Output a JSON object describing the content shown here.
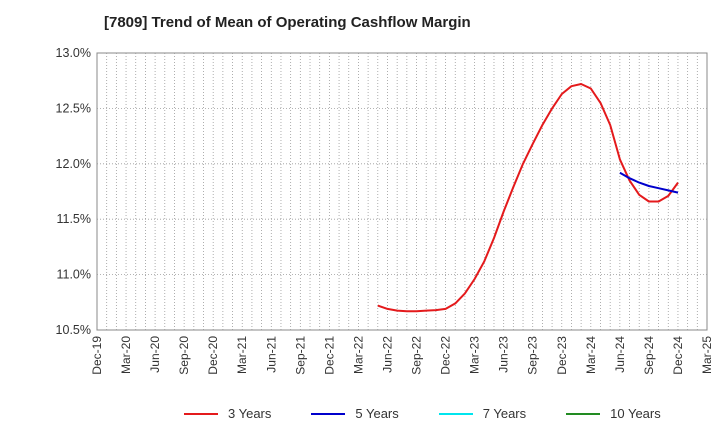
{
  "chart_data": {
    "type": "line",
    "title": "[7809]  Trend of Mean of Operating Cashflow Margin",
    "xlabel": "",
    "ylabel": "",
    "ylim": [
      10.5,
      13.0
    ],
    "y_ticks": [
      "13.0%",
      "12.5%",
      "12.0%",
      "11.5%",
      "11.0%",
      "10.5%"
    ],
    "y_tick_values": [
      13.0,
      12.5,
      12.0,
      11.5,
      11.0,
      10.5
    ],
    "x_ticks": [
      "Dec-19",
      "Mar-20",
      "Jun-20",
      "Sep-20",
      "Dec-20",
      "Mar-21",
      "Jun-21",
      "Sep-21",
      "Dec-21",
      "Mar-22",
      "Jun-22",
      "Sep-22",
      "Dec-22",
      "Mar-23",
      "Jun-23",
      "Sep-23",
      "Dec-23",
      "Mar-24",
      "Jun-24",
      "Sep-24",
      "Dec-24",
      "Mar-25"
    ],
    "grid": true,
    "legend_position": "bottom",
    "series": [
      {
        "name": "3 Years",
        "color": "#e41a1c",
        "x": [
          "May-22",
          "Jun-22",
          "Jul-22",
          "Aug-22",
          "Sep-22",
          "Oct-22",
          "Nov-22",
          "Dec-22",
          "Jan-23",
          "Feb-23",
          "Mar-23",
          "Apr-23",
          "May-23",
          "Jun-23",
          "Jul-23",
          "Aug-23",
          "Sep-23",
          "Oct-23",
          "Nov-23",
          "Dec-23",
          "Jan-24",
          "Feb-24",
          "Mar-24",
          "Apr-24",
          "May-24",
          "Jun-24",
          "Jul-24",
          "Aug-24",
          "Sep-24",
          "Oct-24",
          "Nov-24",
          "Dec-24"
        ],
        "values": [
          10.72,
          10.69,
          10.675,
          10.67,
          10.67,
          10.675,
          10.68,
          10.69,
          10.74,
          10.83,
          10.96,
          11.12,
          11.33,
          11.57,
          11.79,
          12.0,
          12.18,
          12.35,
          12.5,
          12.63,
          12.7,
          12.72,
          12.68,
          12.55,
          12.35,
          12.04,
          11.85,
          11.72,
          11.66,
          11.66,
          11.71,
          11.83
        ]
      },
      {
        "name": "5 Years",
        "color": "#0000cc",
        "x": [
          "Jun-24",
          "Jul-24",
          "Aug-24",
          "Sep-24",
          "Oct-24",
          "Nov-24",
          "Dec-24"
        ],
        "values": [
          11.92,
          11.87,
          11.83,
          11.8,
          11.78,
          11.76,
          11.74
        ]
      },
      {
        "name": "7 Years",
        "color": "#00e5ee",
        "x": [],
        "values": []
      },
      {
        "name": "10 Years",
        "color": "#228b22",
        "x": [],
        "values": []
      }
    ]
  }
}
